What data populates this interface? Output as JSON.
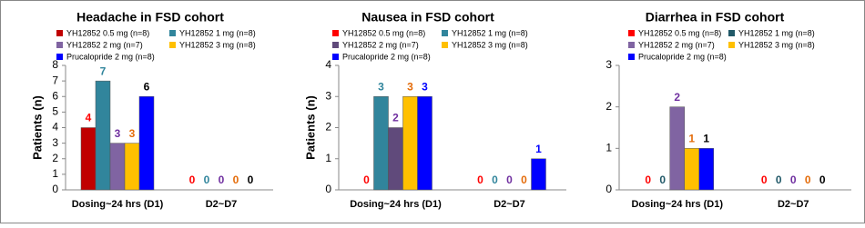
{
  "chart_data": [
    {
      "type": "bar",
      "title": "Headache in FSD cohort",
      "y_label": "Patients (n)",
      "categories": [
        "Dosing~24 hrs (D1)",
        "D2~D7"
      ],
      "ylim": [
        0,
        8
      ],
      "yticks": [
        0,
        1,
        2,
        3,
        4,
        5,
        6,
        7,
        8
      ],
      "series": [
        {
          "name": "YH12852 0.5 mg (n=8)",
          "color": "#c00000",
          "label_color": "#ff0000",
          "values": [
            4,
            0
          ]
        },
        {
          "name": "YH12852 1 mg (n=8)",
          "color": "#31859c",
          "label_color": "#31859c",
          "values": [
            7,
            0
          ]
        },
        {
          "name": "YH12852 2 mg (n=7)",
          "color": "#8064a2",
          "label_color": "#7030a0",
          "values": [
            3,
            0
          ]
        },
        {
          "name": "YH12852 3 mg (n=8)",
          "color": "#ffc000",
          "label_color": "#e46c0a",
          "values": [
            3,
            0
          ]
        },
        {
          "name": "Prucalopride 2 mg (n=8)",
          "color": "#0000ff",
          "label_color": "#000000",
          "values": [
            6,
            0
          ]
        }
      ]
    },
    {
      "type": "bar",
      "title": "Nausea in FSD cohort",
      "y_label": "Patients (n)",
      "categories": [
        "Dosing~24 hrs (D1)",
        "D2~D7"
      ],
      "ylim": [
        0,
        4
      ],
      "yticks": [
        0,
        1,
        2,
        3,
        4
      ],
      "series": [
        {
          "name": "YH12852 0.5 mg (n=8)",
          "color": "#ff0000",
          "label_color": "#ff0000",
          "values": [
            0,
            0
          ]
        },
        {
          "name": "YH12852 1 mg (n=8)",
          "color": "#31859c",
          "label_color": "#31859c",
          "values": [
            3,
            0
          ]
        },
        {
          "name": "YH12852 2 mg (n=7)",
          "color": "#604a7b",
          "label_color": "#7030a0",
          "values": [
            2,
            0
          ]
        },
        {
          "name": "YH12852 3 mg (n=8)",
          "color": "#ffc000",
          "label_color": "#e46c0a",
          "values": [
            3,
            0
          ]
        },
        {
          "name": "Prucalopride 2 mg (n=8)",
          "color": "#0000ff",
          "label_color": "#0000ff",
          "values": [
            3,
            1
          ]
        }
      ]
    },
    {
      "type": "bar",
      "title": "Diarrhea in FSD cohort",
      "categories": [
        "Dosing~24 hrs (D1)",
        "D2~D7"
      ],
      "ylim": [
        0,
        3
      ],
      "yticks": [
        0,
        1,
        2,
        3
      ],
      "series": [
        {
          "name": "YH12852 0.5 mg (n=8)",
          "color": "#ff0000",
          "label_color": "#ff0000",
          "values": [
            0,
            0
          ]
        },
        {
          "name": "YH12852 1 mg (n=8)",
          "color": "#215968",
          "label_color": "#215968",
          "values": [
            0,
            0
          ]
        },
        {
          "name": "YH12852 2 mg (n=7)",
          "color": "#8064a2",
          "label_color": "#7030a0",
          "values": [
            2,
            0
          ]
        },
        {
          "name": "YH12852 3 mg (n=8)",
          "color": "#ffc000",
          "label_color": "#e46c0a",
          "values": [
            1,
            0
          ]
        },
        {
          "name": "Prucalopride 2 mg (n=8)",
          "color": "#0000ff",
          "label_color": "#000000",
          "values": [
            1,
            0
          ]
        }
      ]
    }
  ]
}
